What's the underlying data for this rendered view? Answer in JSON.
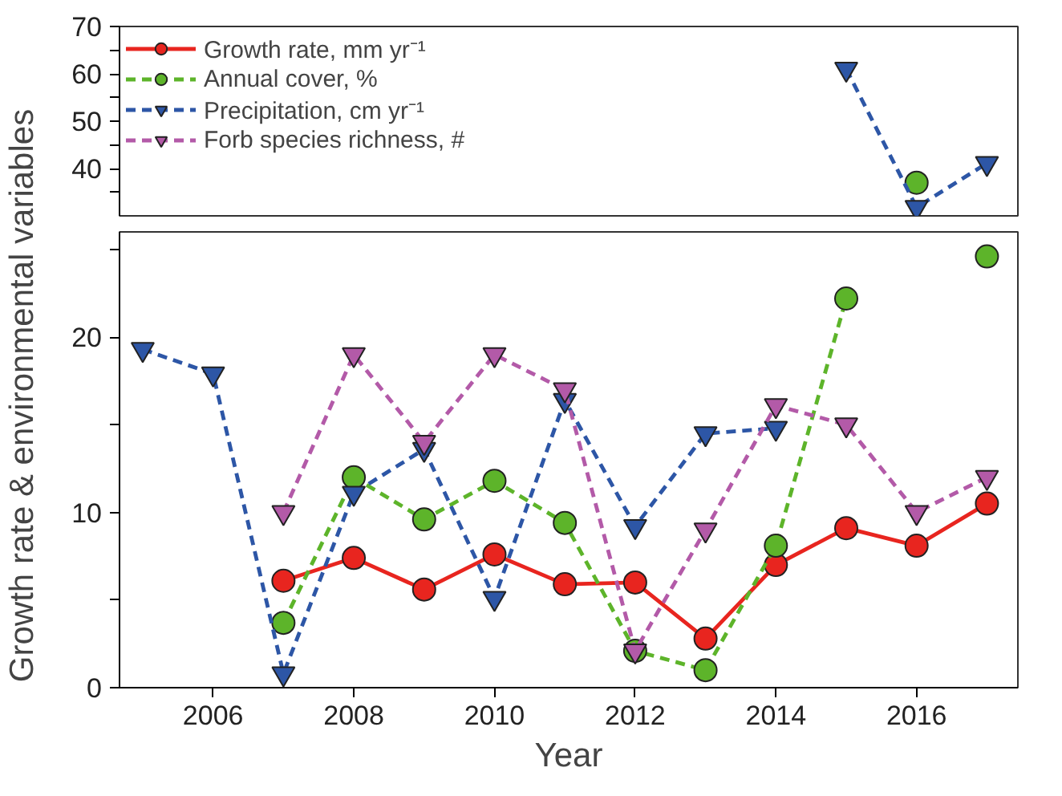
{
  "chart_data": [
    {
      "type": "line",
      "x": [
        2015,
        2016,
        2017
      ],
      "xlim": [
        2004.67,
        2017.44
      ],
      "ylim": [
        30,
        70
      ],
      "yticks": [
        {
          "value": 35,
          "label": null
        },
        40,
        {
          "value": 45,
          "label": null
        },
        50,
        {
          "value": 55,
          "label": null
        },
        60,
        {
          "value": 65,
          "label": null
        },
        70
      ],
      "tick_labels": "y",
      "grid": false,
      "legend": "top left",
      "series": [
        {
          "name": "Growth rate, mm yr⁻¹",
          "color": "#e8251f",
          "marker": "circle",
          "line_style": "solid",
          "values": [
            null,
            null,
            null
          ]
        },
        {
          "name": "Annual cover, %",
          "color": "#5db42a",
          "marker": "circle",
          "line_style": "dashed",
          "values": [
            null,
            37,
            null
          ]
        },
        {
          "name": "Precipitation, cm yr⁻¹",
          "color": "#2d56a6",
          "marker": "triangle",
          "line_style": "dashed",
          "values": [
            61,
            31.8,
            41.1
          ]
        },
        {
          "name": "Forb species richness, #",
          "color": "#b35aa8",
          "marker": "triangle",
          "line_style": "dashed",
          "values": [
            null,
            null,
            null
          ]
        }
      ]
    },
    {
      "type": "line",
      "x": [
        2005,
        2006,
        2007,
        2008,
        2009,
        2010,
        2011,
        2012,
        2013,
        2014,
        2015,
        2016,
        2017
      ],
      "xlim": [
        2004.67,
        2017.44
      ],
      "ylim": [
        0,
        26
      ],
      "xticks": [
        2006,
        2008,
        2010,
        2012,
        2014,
        2016
      ],
      "yticks": [
        0,
        {
          "value": 5,
          "label": null
        },
        10,
        {
          "value": 15,
          "label": null
        },
        20,
        {
          "value": 25,
          "label": null
        }
      ],
      "xlabel": "Year",
      "ylabel": "Growth rate & environmental variables",
      "grid": false,
      "series": [
        {
          "color": "#e8251f",
          "marker": "circle",
          "line_style": "solid",
          "values": [
            null,
            null,
            6.1,
            7.4,
            5.6,
            7.6,
            5.9,
            6.0,
            2.8,
            7.0,
            9.1,
            8.1,
            10.5
          ]
        },
        {
          "color": "#5db42a",
          "marker": "circle",
          "line_style": "dashed",
          "values": [
            null,
            null,
            3.7,
            12.0,
            9.6,
            11.8,
            9.4,
            2.1,
            1.0,
            8.1,
            22.2,
            null,
            24.6
          ]
        },
        {
          "color": "#2d56a6",
          "marker": "triangle",
          "line_style": "dashed",
          "values": [
            19.3,
            17.9,
            0.8,
            11.1,
            13.6,
            5.1,
            16.4,
            9.2,
            14.5,
            14.8,
            null,
            null,
            null
          ]
        },
        {
          "color": "#b35aa8",
          "marker": "triangle",
          "line_style": "dashed",
          "values": [
            null,
            null,
            10.0,
            19.0,
            14.0,
            19.0,
            17.0,
            2.1,
            9.0,
            16.1,
            15.0,
            10.0,
            12.0
          ]
        }
      ]
    }
  ]
}
